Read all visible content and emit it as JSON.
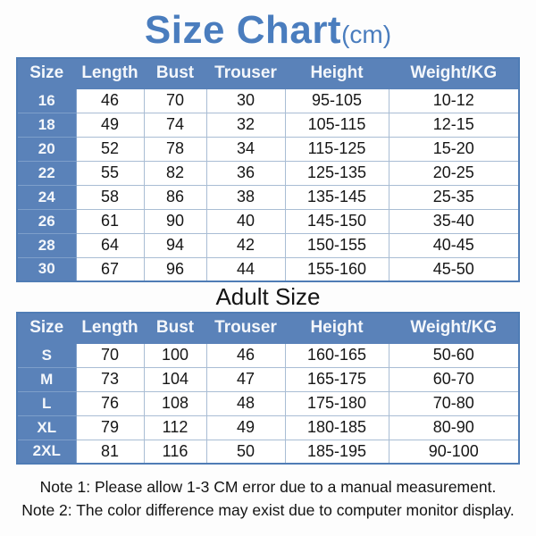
{
  "page": {
    "title": "Size Chart",
    "title_unit": "(cm)",
    "notes": [
      "Note 1: Please allow 1-3 CM error due to a manual measurement.",
      "Note 2: The color difference may exist due to computer monitor display."
    ]
  },
  "colors": {
    "title_blue": "#4a7dbe",
    "header_blue": "#5a82b9",
    "cell_border": "#a9bdd4",
    "table_outer_border": "#4f7cb5",
    "cell_background": "#ffffff",
    "header_text": "#f4f7fb",
    "body_text": "#161616"
  },
  "chart_data": [
    {
      "type": "table",
      "title": "Size Chart (cm)",
      "columns": [
        "Size",
        "Length",
        "Bust",
        "Trouser",
        "Height",
        "Weight/KG"
      ],
      "rows": [
        [
          "16",
          "46",
          "70",
          "30",
          "95-105",
          "10-12"
        ],
        [
          "18",
          "49",
          "74",
          "32",
          "105-115",
          "12-15"
        ],
        [
          "20",
          "52",
          "78",
          "34",
          "115-125",
          "15-20"
        ],
        [
          "22",
          "55",
          "82",
          "36",
          "125-135",
          "20-25"
        ],
        [
          "24",
          "58",
          "86",
          "38",
          "135-145",
          "25-35"
        ],
        [
          "26",
          "61",
          "90",
          "40",
          "145-150",
          "35-40"
        ],
        [
          "28",
          "64",
          "94",
          "42",
          "150-155",
          "40-45"
        ],
        [
          "30",
          "67",
          "96",
          "44",
          "155-160",
          "45-50"
        ]
      ]
    },
    {
      "type": "table",
      "title": "Adult Size",
      "columns": [
        "Size",
        "Length",
        "Bust",
        "Trouser",
        "Height",
        "Weight/KG"
      ],
      "rows": [
        [
          "S",
          "70",
          "100",
          "46",
          "160-165",
          "50-60"
        ],
        [
          "M",
          "73",
          "104",
          "47",
          "165-175",
          "60-70"
        ],
        [
          "L",
          "76",
          "108",
          "48",
          "175-180",
          "70-80"
        ],
        [
          "XL",
          "79",
          "112",
          "49",
          "180-185",
          "80-90"
        ],
        [
          "2XL",
          "81",
          "116",
          "50",
          "185-195",
          "90-100"
        ]
      ]
    }
  ]
}
